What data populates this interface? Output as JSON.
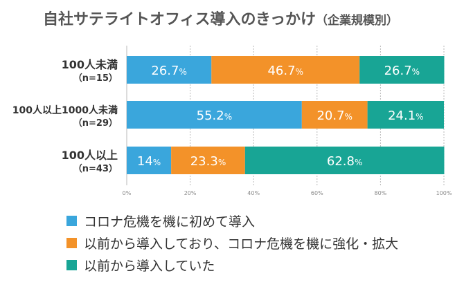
{
  "title": "自社サテライトオフィス導入のきっかけ",
  "subtitle": "（企業規模別）",
  "colors": {
    "series1": "#3aa6dc",
    "series2": "#f39229",
    "series3": "#18a595"
  },
  "chart_data": {
    "type": "bar",
    "orientation": "horizontal",
    "stacked": true,
    "categories": [
      {
        "name": "100人未満",
        "n": "（n=15）"
      },
      {
        "name": "100人以上1000人未満",
        "n": "（n=29）"
      },
      {
        "name": "100人以上",
        "n": "（n=43）"
      }
    ],
    "series": [
      {
        "name": "コロナ危機を機に初めて導入",
        "values": [
          26.7,
          55.2,
          14
        ],
        "color": "#3aa6dc"
      },
      {
        "name": "以前から導入しており、コロナ危機を機に強化・拡大",
        "values": [
          46.7,
          20.7,
          23.3
        ],
        "color": "#f39229"
      },
      {
        "name": "以前から導入していた",
        "values": [
          26.7,
          24.1,
          62.8
        ],
        "color": "#18a595"
      }
    ],
    "data_labels": [
      [
        "26.7",
        "46.7",
        "26.7"
      ],
      [
        "55.2",
        "20.7",
        "24.1"
      ],
      [
        "14",
        "23.3",
        "62.8"
      ]
    ],
    "value_suffix": "%",
    "xlim": [
      0,
      100
    ],
    "xticks": [
      "0%",
      "20%",
      "40%",
      "60%",
      "80%",
      "100%"
    ],
    "grid": "vertical dotted",
    "legend": "bottom"
  }
}
